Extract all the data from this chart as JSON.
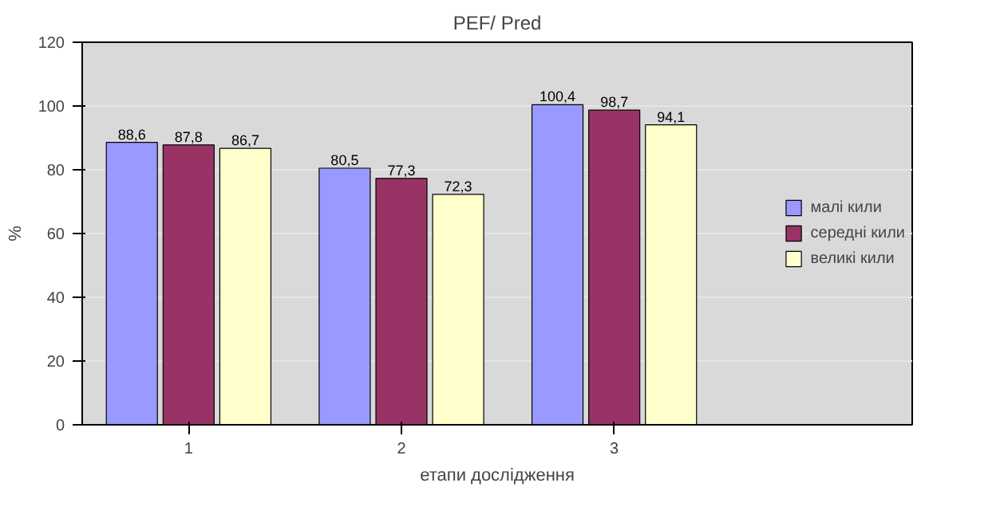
{
  "chart_data": {
    "type": "bar",
    "title": "PEF/ Pred",
    "xlabel": "етапи дослідження",
    "ylabel": "%",
    "categories": [
      "1",
      "2",
      "3"
    ],
    "series": [
      {
        "name": "малі кили",
        "color": "#9999ff",
        "values": [
          88.6,
          80.5,
          100.4
        ],
        "value_labels": [
          "88,6",
          "80,5",
          "100,4"
        ]
      },
      {
        "name": "середні кили",
        "color": "#993366",
        "values": [
          87.8,
          77.3,
          98.7
        ],
        "value_labels": [
          "87,8",
          "77,3",
          "98,7"
        ]
      },
      {
        "name": "великі кили",
        "color": "#ffffcc",
        "values": [
          86.7,
          72.3,
          94.1
        ],
        "value_labels": [
          "86,7",
          "72,3",
          "94,1"
        ]
      }
    ],
    "ylim": [
      0,
      120
    ],
    "yticks": [
      0,
      20,
      40,
      60,
      80,
      100,
      120
    ],
    "grid": "y",
    "legend": "right"
  }
}
